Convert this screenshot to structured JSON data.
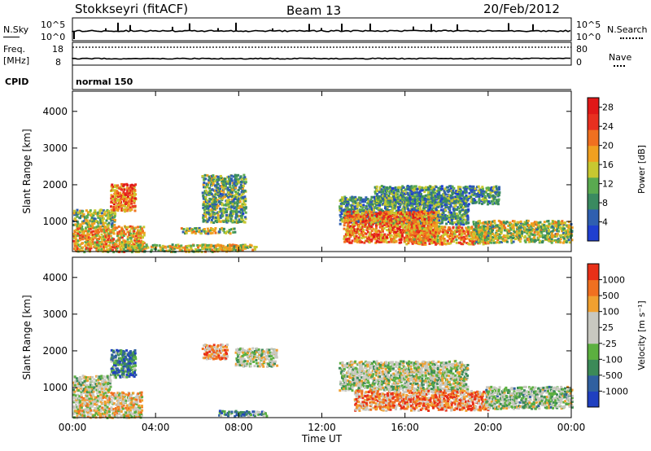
{
  "header": {
    "station": "Stokkseyri (fitACF)",
    "beam": "Beam 13",
    "date": "20/Feb/2012"
  },
  "summary": {
    "nsky_label": "N.Sky",
    "nsky_ticks": [
      "10^5",
      "10^0"
    ],
    "nsearch_label": "N.Search",
    "nsearch_ticks": [
      "10^5",
      "10^0"
    ],
    "freq_label": "Freq.",
    "freq_unit": "[MHz]",
    "freq_ticks": [
      "18",
      "8"
    ],
    "nave_label": "Nave",
    "nave_ticks": [
      "80",
      "0"
    ],
    "cpid_label": "CPID",
    "cpid_value": "normal 150"
  },
  "chart_data": [
    {
      "type": "heatmap",
      "name": "power",
      "ylabel": "Slant Range [km]",
      "xlabel": "Time UT",
      "x_ticks": [
        "00:00",
        "04:00",
        "08:00",
        "12:00",
        "16:00",
        "20:00",
        "00:00"
      ],
      "x_range_hours": [
        0,
        24
      ],
      "y_ticks": [
        1000,
        2000,
        3000,
        4000
      ],
      "ylim": [
        180,
        4550
      ],
      "colorbar": {
        "label": "Power [dB]",
        "ticks": [
          4,
          8,
          12,
          16,
          20,
          24,
          28
        ],
        "range": [
          0,
          30
        ],
        "colors": [
          "#1f3fd0",
          "#2f5fb0",
          "#3a8a60",
          "#5aaa50",
          "#c8c830",
          "#f0a020",
          "#f07020",
          "#e83020",
          "#e01818"
        ]
      },
      "regions": [
        {
          "t0": 0.0,
          "t1": 3.4,
          "r0": 200,
          "r1": 900,
          "level": 0.6
        },
        {
          "t0": 0.0,
          "t1": 2.0,
          "r0": 900,
          "r1": 1350,
          "level": 0.4
        },
        {
          "t0": 1.8,
          "t1": 3.0,
          "r0": 1300,
          "r1": 2050,
          "level": 0.7
        },
        {
          "t0": 2.5,
          "t1": 8.2,
          "r0": 200,
          "r1": 400,
          "level": 0.5
        },
        {
          "t0": 5.2,
          "t1": 7.8,
          "r0": 700,
          "r1": 850,
          "level": 0.45
        },
        {
          "t0": 6.2,
          "t1": 8.3,
          "r0": 1000,
          "r1": 2300,
          "level": 0.35
        },
        {
          "t0": 6.8,
          "t1": 8.8,
          "r0": 250,
          "r1": 400,
          "level": 0.5
        },
        {
          "t0": 12.8,
          "t1": 19.0,
          "r0": 950,
          "r1": 1700,
          "level": 0.3
        },
        {
          "t0": 13.0,
          "t1": 17.5,
          "r0": 450,
          "r1": 1300,
          "level": 0.7
        },
        {
          "t0": 16.0,
          "t1": 20.0,
          "r0": 400,
          "r1": 900,
          "level": 0.65
        },
        {
          "t0": 19.2,
          "t1": 24.0,
          "r0": 450,
          "r1": 1050,
          "level": 0.45
        },
        {
          "t0": 14.5,
          "t1": 20.5,
          "r0": 1500,
          "r1": 2000,
          "level": 0.3
        }
      ]
    },
    {
      "type": "heatmap",
      "name": "velocity",
      "ylabel": "Slant Range [km]",
      "xlabel": "Time UT",
      "x_ticks": [
        "00:00",
        "04:00",
        "08:00",
        "12:00",
        "16:00",
        "20:00",
        "00:00"
      ],
      "x_range_hours": [
        0,
        24
      ],
      "y_ticks": [
        1000,
        2000,
        3000,
        4000
      ],
      "ylim": [
        180,
        4550
      ],
      "colorbar": {
        "label": "Velocity [m s⁻¹]",
        "ticks": [
          1000,
          500,
          100,
          25,
          -25,
          -100,
          -500,
          -1000
        ],
        "colors": [
          "#2040c0",
          "#3060a0",
          "#3c8a58",
          "#5cb040",
          "#c8c8c0",
          "#c8c8c0",
          "#f0a030",
          "#f07020",
          "#e83018"
        ]
      },
      "regions": [
        {
          "t0": 0.0,
          "t1": 3.3,
          "r0": 200,
          "r1": 900,
          "level": 0.6
        },
        {
          "t0": 0.0,
          "t1": 1.8,
          "r0": 900,
          "r1": 1350,
          "level": 0.5
        },
        {
          "t0": 1.8,
          "t1": 3.0,
          "r0": 1300,
          "r1": 2050,
          "level": 0.25
        },
        {
          "t0": 6.2,
          "t1": 7.4,
          "r0": 1800,
          "r1": 2200,
          "level": 0.75
        },
        {
          "t0": 7.8,
          "t1": 9.8,
          "r0": 1600,
          "r1": 2100,
          "level": 0.5
        },
        {
          "t0": 7.0,
          "t1": 9.3,
          "r0": 250,
          "r1": 400,
          "level": 0.3
        },
        {
          "t0": 12.8,
          "t1": 19.0,
          "r0": 950,
          "r1": 1750,
          "level": 0.5
        },
        {
          "t0": 13.5,
          "t1": 20.0,
          "r0": 400,
          "r1": 950,
          "level": 0.78
        },
        {
          "t0": 19.8,
          "t1": 24.0,
          "r0": 450,
          "r1": 1050,
          "level": 0.45
        }
      ]
    }
  ]
}
